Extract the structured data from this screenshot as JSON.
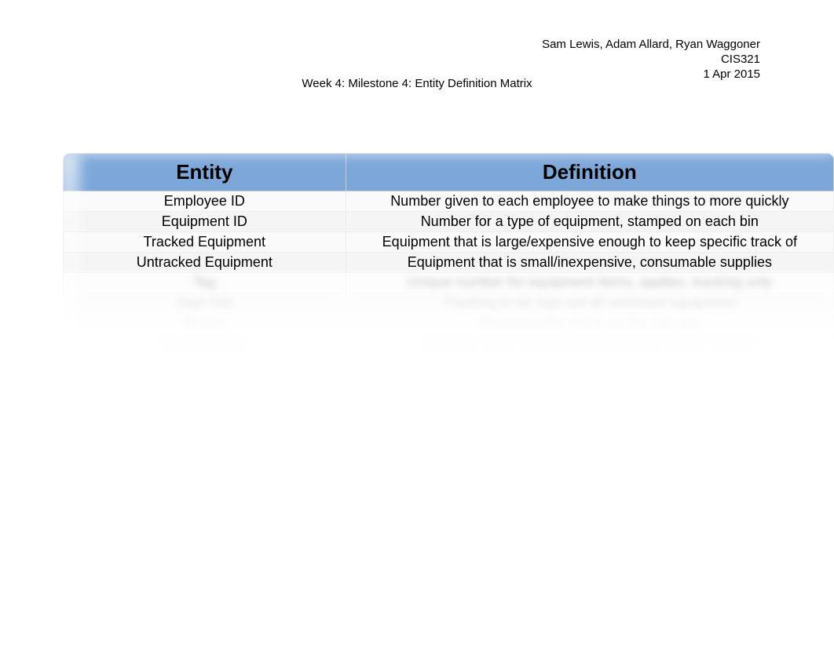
{
  "header": {
    "authors": "Sam Lewis, Adam Allard, Ryan Waggoner",
    "course": "CIS321",
    "date": "1 Apr 2015"
  },
  "title": "Week 4: Milestone 4: Entity Definition Matrix",
  "table": {
    "columns": [
      "Entity",
      "Definition"
    ],
    "rows": [
      [
        "Employee ID",
        "Number given to each employee to make things to more quickly"
      ],
      [
        "Equipment ID",
        "Number for a type of equipment, stamped on each bin"
      ],
      [
        "Tracked Equipment",
        "Equipment that is large/expensive enough to keep specific track of"
      ],
      [
        "Untracked Equipment",
        "Equipment that is small/inexpensive, consumable supplies"
      ]
    ],
    "blurred_rows": [
      [
        "Tag",
        "Unique number for equipment items, applies, tracking only"
      ],
      [
        "Sign Out",
        "Tracking to be sign out all restricted equipment"
      ],
      [
        "Return",
        "Returning the same as the sign out"
      ],
      [
        "Consumables",
        "Also cost of the equipment required in the job records"
      ]
    ],
    "header_bg_color": "#7da7d9",
    "header_fontsize": 26,
    "cell_fontsize": 18,
    "border_color": "#cccccc"
  }
}
